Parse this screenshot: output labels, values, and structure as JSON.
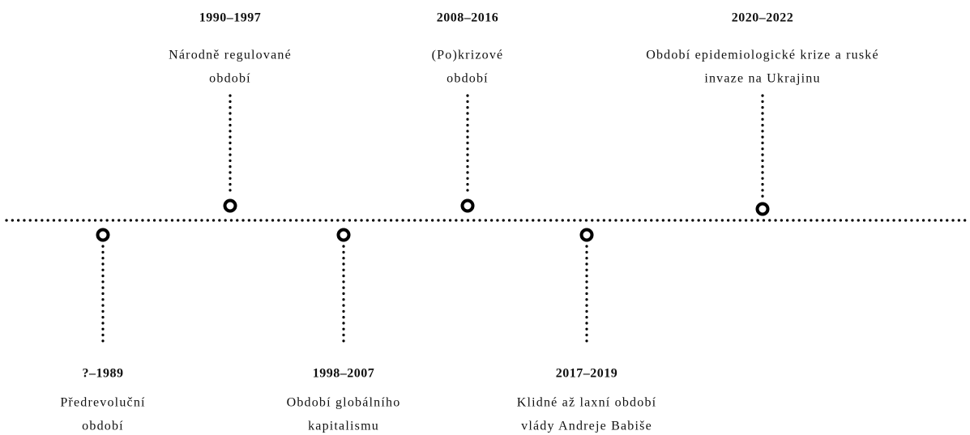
{
  "timeline": {
    "periods": [
      {
        "years": "?–1989",
        "label_lines": [
          "Předrevoluční",
          "období"
        ]
      },
      {
        "years": "1990–1997",
        "label_lines": [
          "Národně regulované",
          "období"
        ]
      },
      {
        "years": "1998–2007",
        "label_lines": [
          "Období globálního",
          "kapitalismu"
        ]
      },
      {
        "years": "2008–2016",
        "label_lines": [
          "(Po)krizové",
          "období"
        ]
      },
      {
        "years": "2017–2019",
        "label_lines": [
          "Klidné až laxní období",
          "vlády Andreje Babiše"
        ]
      },
      {
        "years": "2020–2022",
        "label_lines": [
          "Období epidemiologické krize a ruské",
          "invaze na Ukrajinu"
        ]
      }
    ]
  }
}
